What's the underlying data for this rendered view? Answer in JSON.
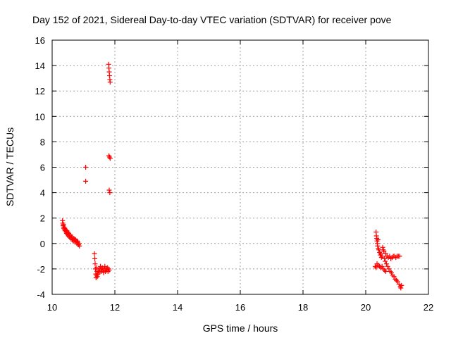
{
  "chart_data": {
    "type": "scatter",
    "title": "Day 152 of 2021, Sidereal Day-to-day VTEC variation (SDTVAR) for receiver pove",
    "xlabel": "GPS time / hours",
    "ylabel": "SDTVAR / TECUs",
    "xlim": [
      10,
      22
    ],
    "ylim": [
      -4,
      16
    ],
    "x_ticks": [
      10,
      12,
      14,
      16,
      18,
      20,
      22
    ],
    "y_ticks": [
      -4,
      -2,
      0,
      2,
      4,
      6,
      8,
      10,
      12,
      14,
      16
    ],
    "grid": true,
    "marker": "+",
    "color": "#ff0000",
    "series": [
      {
        "name": "SDTVAR",
        "points": [
          [
            10.33,
            1.8
          ],
          [
            10.34,
            1.6
          ],
          [
            10.35,
            1.4
          ],
          [
            10.36,
            1.5
          ],
          [
            10.37,
            1.2
          ],
          [
            10.38,
            1.3
          ],
          [
            10.39,
            1.1
          ],
          [
            10.4,
            1.2
          ],
          [
            10.41,
            1.0
          ],
          [
            10.42,
            1.1
          ],
          [
            10.44,
            1.0
          ],
          [
            10.45,
            0.9
          ],
          [
            10.46,
            0.8
          ],
          [
            10.47,
            1.0
          ],
          [
            10.48,
            0.7
          ],
          [
            10.5,
            0.9
          ],
          [
            10.52,
            0.6
          ],
          [
            10.53,
            0.8
          ],
          [
            10.55,
            0.5
          ],
          [
            10.56,
            0.7
          ],
          [
            10.58,
            0.6
          ],
          [
            10.6,
            0.4
          ],
          [
            10.62,
            0.5
          ],
          [
            10.64,
            0.3
          ],
          [
            10.65,
            0.5
          ],
          [
            10.67,
            0.2
          ],
          [
            10.69,
            0.4
          ],
          [
            10.71,
            0.3
          ],
          [
            10.73,
            0.1
          ],
          [
            10.75,
            0.3
          ],
          [
            10.77,
            0.2
          ],
          [
            10.79,
            0.0
          ],
          [
            10.8,
            0.2
          ],
          [
            10.82,
            0.1
          ],
          [
            10.84,
            -0.1
          ],
          [
            10.86,
            0.0
          ],
          [
            10.87,
            -0.2
          ],
          [
            11.07,
            6.0
          ],
          [
            11.07,
            4.9
          ],
          [
            11.35,
            -0.8
          ],
          [
            11.36,
            -1.2
          ],
          [
            11.37,
            -1.6
          ],
          [
            11.38,
            -2.0
          ],
          [
            11.39,
            -2.4
          ],
          [
            11.4,
            -2.7
          ],
          [
            11.41,
            -2.5
          ],
          [
            11.42,
            -1.9
          ],
          [
            11.43,
            -2.2
          ],
          [
            11.44,
            -2.6
          ],
          [
            11.46,
            -2.4
          ],
          [
            11.48,
            -2.1
          ],
          [
            11.5,
            -2.3
          ],
          [
            11.52,
            -2.0
          ],
          [
            11.54,
            -1.8
          ],
          [
            11.56,
            -2.2
          ],
          [
            11.58,
            -2.0
          ],
          [
            11.6,
            -1.9
          ],
          [
            11.62,
            -2.1
          ],
          [
            11.64,
            -2.3
          ],
          [
            11.66,
            -2.0
          ],
          [
            11.68,
            -1.8
          ],
          [
            11.7,
            -2.2
          ],
          [
            11.72,
            -2.0
          ],
          [
            11.74,
            -2.1
          ],
          [
            11.76,
            -1.9
          ],
          [
            11.78,
            -2.2
          ],
          [
            11.8,
            -2.0
          ],
          [
            11.82,
            -2.1
          ],
          [
            11.8,
            14.1
          ],
          [
            11.81,
            13.8
          ],
          [
            11.82,
            13.5
          ],
          [
            11.83,
            13.2
          ],
          [
            11.84,
            12.9
          ],
          [
            11.85,
            12.7
          ],
          [
            11.81,
            6.9
          ],
          [
            11.83,
            6.8
          ],
          [
            11.85,
            6.7
          ],
          [
            11.82,
            4.2
          ],
          [
            11.84,
            4.0
          ],
          [
            20.33,
            0.9
          ],
          [
            20.34,
            0.6
          ],
          [
            20.35,
            0.4
          ],
          [
            20.36,
            0.2
          ],
          [
            20.37,
            0.0
          ],
          [
            20.38,
            -0.2
          ],
          [
            20.39,
            0.3
          ],
          [
            20.4,
            -0.4
          ],
          [
            20.42,
            -0.5
          ],
          [
            20.44,
            -0.7
          ],
          [
            20.46,
            -0.9
          ],
          [
            20.48,
            -0.8
          ],
          [
            20.5,
            -1.1
          ],
          [
            20.52,
            -1.0
          ],
          [
            20.54,
            -0.3
          ],
          [
            20.56,
            -0.5
          ],
          [
            20.58,
            -0.6
          ],
          [
            20.6,
            -1.2
          ],
          [
            20.62,
            -1.4
          ],
          [
            20.64,
            -0.8
          ],
          [
            20.66,
            -1.6
          ],
          [
            20.68,
            -1.0
          ],
          [
            20.7,
            -1.8
          ],
          [
            20.72,
            -1.1
          ],
          [
            20.74,
            -2.0
          ],
          [
            20.76,
            -1.0
          ],
          [
            20.78,
            -2.2
          ],
          [
            20.8,
            -1.2
          ],
          [
            20.82,
            -2.3
          ],
          [
            20.84,
            -1.1
          ],
          [
            20.86,
            -2.5
          ],
          [
            20.88,
            -1.0
          ],
          [
            20.9,
            -2.6
          ],
          [
            20.92,
            -1.0
          ],
          [
            20.94,
            -2.8
          ],
          [
            20.96,
            -1.1
          ],
          [
            20.98,
            -2.9
          ],
          [
            21.0,
            -1.0
          ],
          [
            21.02,
            -3.0
          ],
          [
            21.04,
            -1.0
          ],
          [
            21.06,
            -3.2
          ],
          [
            21.08,
            -1.0
          ],
          [
            21.1,
            -3.4
          ],
          [
            21.12,
            -3.5
          ],
          [
            21.14,
            -3.3
          ],
          [
            20.3,
            -1.8
          ],
          [
            20.33,
            -1.9
          ],
          [
            20.36,
            -1.6
          ],
          [
            20.4,
            -1.7
          ],
          [
            20.44,
            -1.8
          ],
          [
            20.48,
            -1.9
          ],
          [
            20.52,
            -1.8
          ],
          [
            20.56,
            -2.0
          ],
          [
            20.6,
            -2.1
          ],
          [
            20.64,
            -2.2
          ]
        ]
      }
    ]
  }
}
